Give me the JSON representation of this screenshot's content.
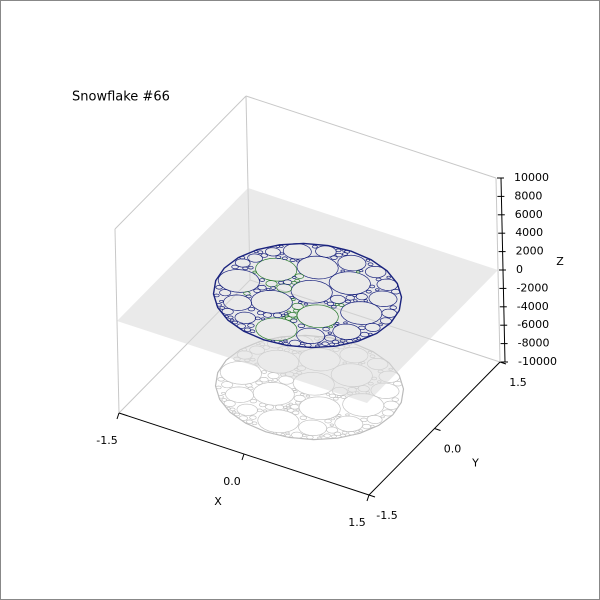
{
  "chart_data": {
    "type": "snowflake3d",
    "title": "Snowflake #66",
    "xlabel": "X",
    "ylabel": "Y",
    "zlabel": "Z",
    "xlim": [
      -1.5,
      1.5
    ],
    "xticks": [
      -1.5,
      {
        "value": 0,
        "label": "0.0"
      },
      1.5
    ],
    "ylim": [
      -1.5,
      1.5
    ],
    "yticks": [
      -1.5,
      {
        "value": 0,
        "label": "0.0"
      },
      1.5
    ],
    "zlim": [
      -10000,
      10000
    ],
    "zticks": [
      -10000,
      -8000,
      -6000,
      -4000,
      -2000,
      0,
      2000,
      4000,
      6000,
      8000,
      10000
    ],
    "colors": [
      "#1a237e",
      "#2e7d32"
    ]
  }
}
